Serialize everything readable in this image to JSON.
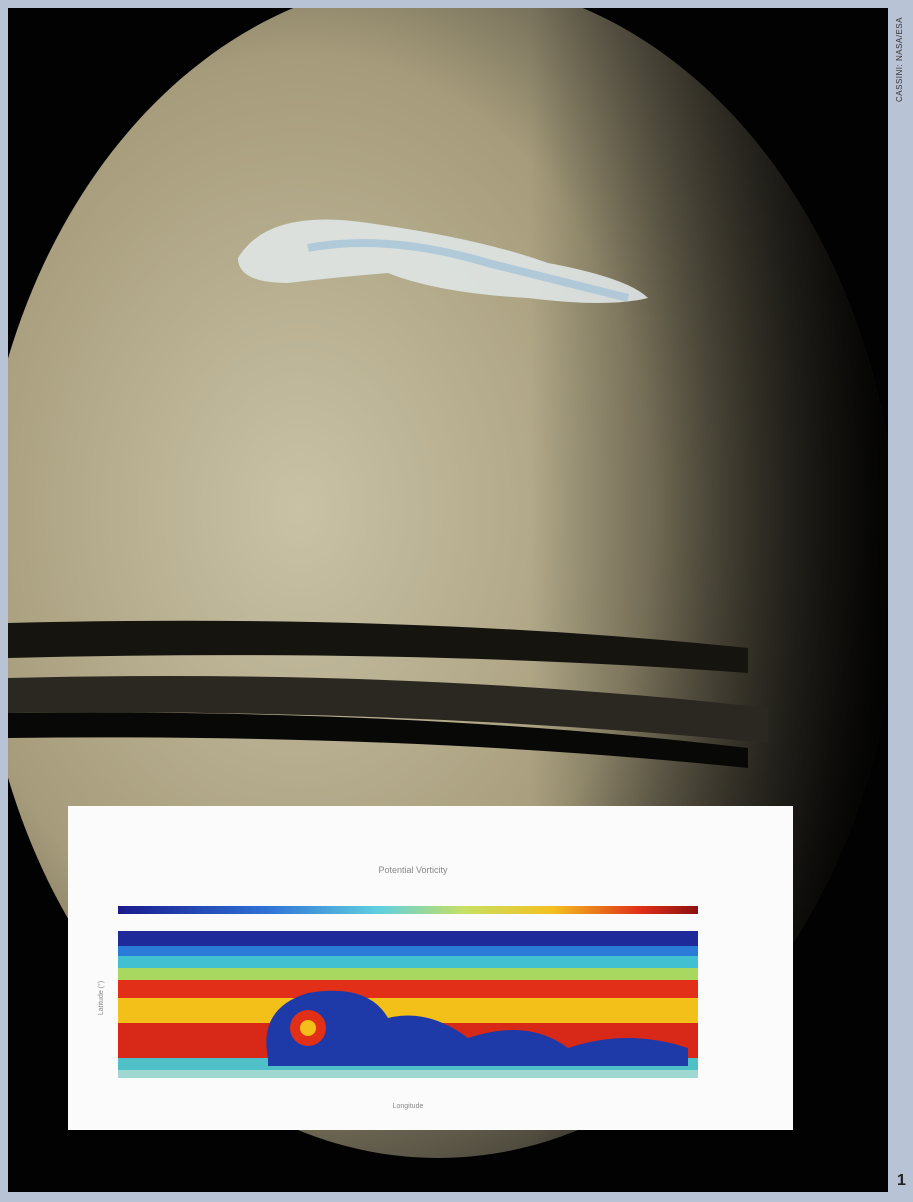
{
  "credit": "CASSINI: NASA/ESA",
  "page_number": "1",
  "inset": {
    "title": "Potential Vorticity",
    "x_axis_label": "Longitude",
    "y_axis_label": "Latitude (°)"
  }
}
